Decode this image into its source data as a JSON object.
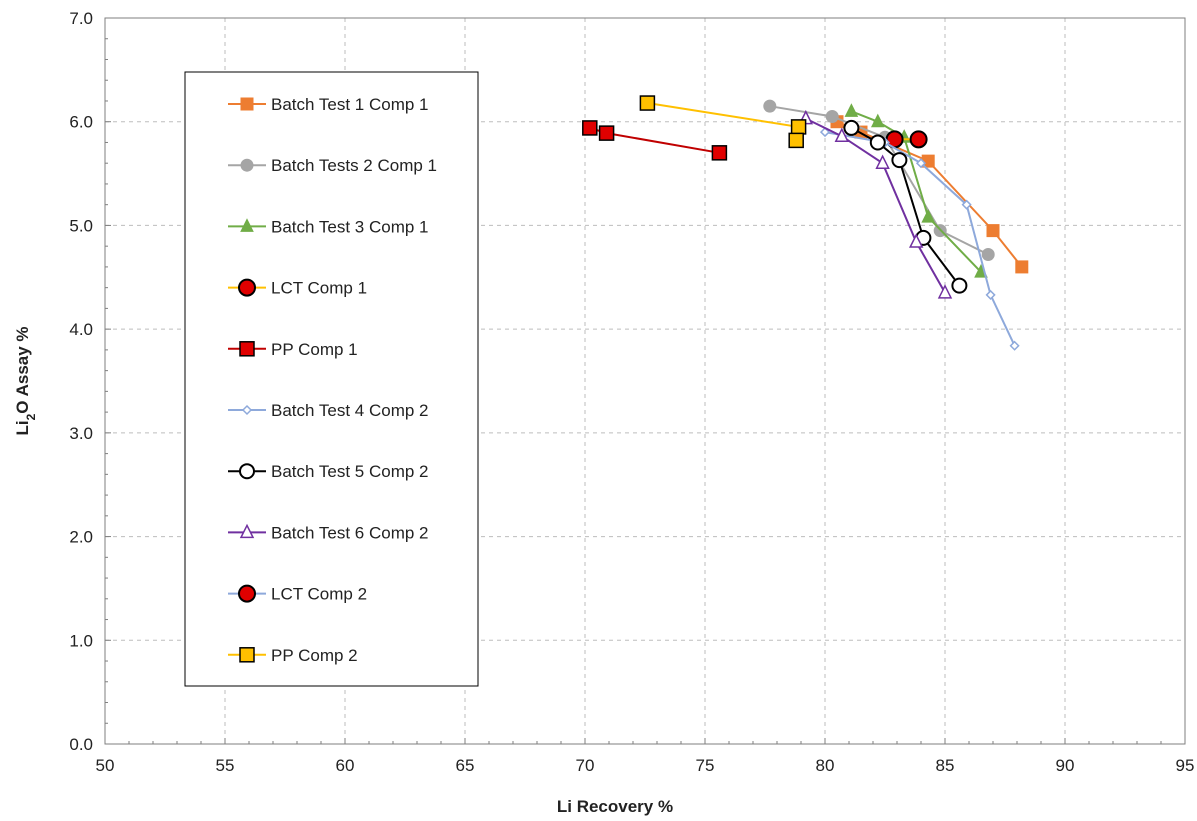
{
  "chart_data": {
    "type": "line",
    "xlabel": "Li Recovery %",
    "ylabel_main": "Li",
    "ylabel_sub": "2",
    "ylabel_rest": "O Assay %",
    "xlim": [
      50,
      95
    ],
    "ylim": [
      0,
      7
    ],
    "xticks": [
      50,
      55,
      60,
      65,
      70,
      75,
      80,
      85,
      90,
      95
    ],
    "xtick_labels": [
      "50",
      "55",
      "60",
      "65",
      "70",
      "75",
      "80",
      "85",
      "90",
      "95"
    ],
    "yticks": [
      0,
      1,
      2,
      3,
      4,
      5,
      6,
      7
    ],
    "ytick_labels": [
      "0.0",
      "1.0",
      "2.0",
      "3.0",
      "4.0",
      "5.0",
      "6.0",
      "7.0"
    ],
    "grid": true,
    "legend_position": "left",
    "series": [
      {
        "name": "Batch Test 1 Comp 1",
        "color": "#ED7D31",
        "marker": "square",
        "line": true,
        "points": [
          [
            80.5,
            6.0
          ],
          [
            81.5,
            5.9
          ],
          [
            84.3,
            5.62
          ],
          [
            87.0,
            4.95
          ],
          [
            88.2,
            4.6
          ]
        ]
      },
      {
        "name": "Batch Tests 2 Comp 1",
        "color": "#A5A5A5",
        "marker": "circle",
        "line": true,
        "points": [
          [
            77.7,
            6.15
          ],
          [
            80.3,
            6.05
          ],
          [
            82.5,
            5.85
          ],
          [
            84.8,
            4.95
          ],
          [
            86.8,
            4.72
          ]
        ]
      },
      {
        "name": "Batch Test 3 Comp 1",
        "color": "#70AD47",
        "marker": "triangle",
        "line": true,
        "points": [
          [
            81.1,
            6.1
          ],
          [
            82.2,
            6.0
          ],
          [
            83.3,
            5.85
          ],
          [
            84.3,
            5.08
          ],
          [
            86.5,
            4.55
          ]
        ]
      },
      {
        "name": "LCT Comp 1",
        "color": "#FFC000",
        "marker": "circle-red",
        "line": true,
        "points": [
          [
            82.9,
            5.83
          ],
          [
            83.9,
            5.83
          ]
        ]
      },
      {
        "name": "PP Comp 1",
        "color": "#C00000",
        "marker": "square-red",
        "line": true,
        "points": [
          [
            70.2,
            5.94
          ],
          [
            70.9,
            5.89
          ],
          [
            75.6,
            5.7
          ]
        ]
      },
      {
        "name": "Batch Test 4 Comp 2",
        "color": "#8EA9DB",
        "marker": "diamond",
        "line": true,
        "points": [
          [
            80.0,
            5.9
          ],
          [
            82.5,
            5.8
          ],
          [
            84.0,
            5.6
          ],
          [
            85.9,
            5.2
          ],
          [
            86.9,
            4.33
          ],
          [
            87.9,
            3.84
          ]
        ]
      },
      {
        "name": "Batch Test 5 Comp 2",
        "color": "#000000",
        "marker": "circle-open",
        "line": true,
        "points": [
          [
            81.1,
            5.94
          ],
          [
            82.2,
            5.8
          ],
          [
            83.1,
            5.63
          ],
          [
            84.1,
            4.88
          ],
          [
            85.6,
            4.42
          ]
        ]
      },
      {
        "name": "Batch Test 6 Comp 2",
        "color": "#7030A0",
        "marker": "triangle-open",
        "line": true,
        "points": [
          [
            79.2,
            6.03
          ],
          [
            80.7,
            5.86
          ],
          [
            82.4,
            5.6
          ],
          [
            83.8,
            4.84
          ],
          [
            85.0,
            4.35
          ]
        ]
      },
      {
        "name": "LCT Comp 2",
        "color": "#8EA9DB",
        "marker": "circle-red",
        "line": true,
        "points": []
      },
      {
        "name": "PP Comp 2",
        "color": "#FFC000",
        "marker": "square-yellow",
        "line": true,
        "points": [
          [
            72.6,
            6.18
          ],
          [
            78.9,
            5.95
          ],
          [
            78.8,
            5.82
          ]
        ]
      }
    ]
  }
}
